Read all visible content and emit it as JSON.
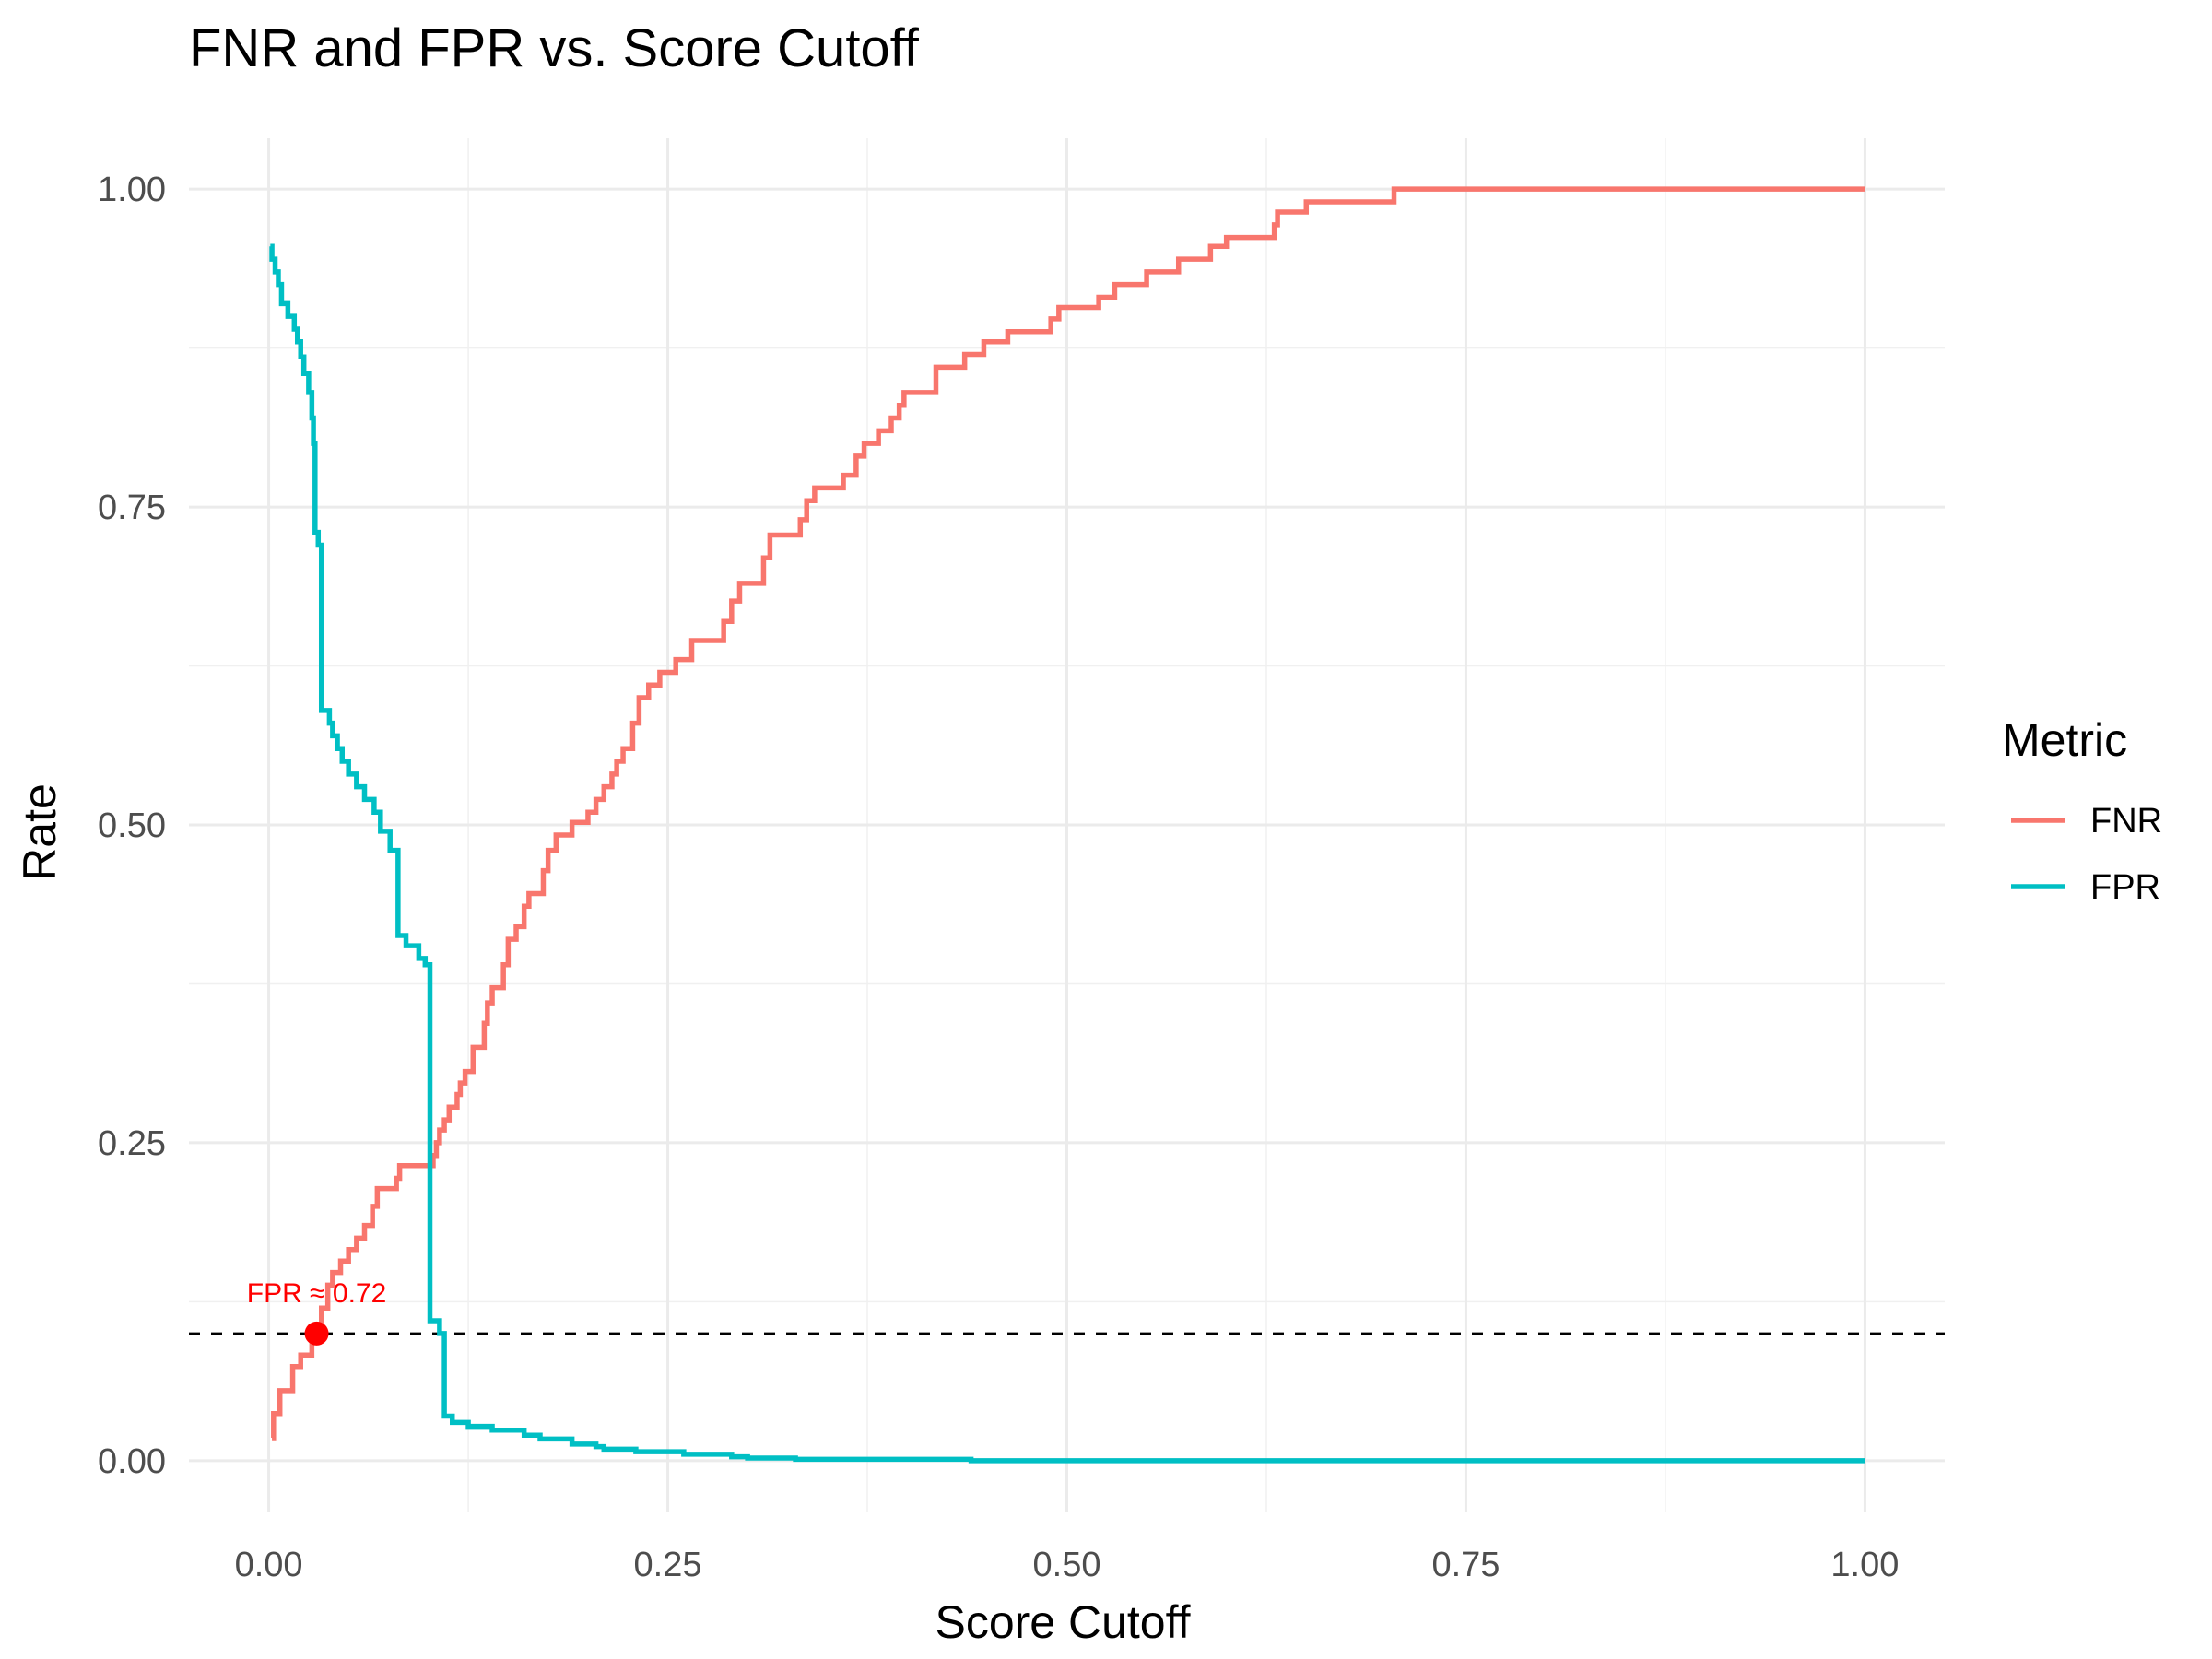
{
  "chart_data": {
    "type": "line",
    "title": "FNR and FPR vs. Score Cutoff",
    "xlabel": "Score Cutoff",
    "ylabel": "Rate",
    "xlim": [
      -0.05,
      1.05
    ],
    "ylim": [
      -0.04,
      1.04
    ],
    "x_ticks": [
      0,
      0.25,
      0.5,
      0.75,
      1
    ],
    "x_tick_labels": [
      "0.00",
      "0.25",
      "0.50",
      "0.75",
      "1.00"
    ],
    "y_ticks": [
      0,
      0.25,
      0.5,
      0.75,
      1
    ],
    "y_tick_labels": [
      "0.00",
      "0.25",
      "0.50",
      "0.75",
      "1.00"
    ],
    "grid": true,
    "legend": {
      "title": "Metric",
      "position": "right"
    },
    "reference_line": {
      "y": 0.1,
      "style": "dashed",
      "color": "#000000"
    },
    "annotation": {
      "text": "FPR ≈ 0.72",
      "x": 0.03,
      "y": 0.1,
      "color": "#ff0000"
    },
    "series": [
      {
        "name": "FNR",
        "color": "#f8766d",
        "step": true,
        "points": [
          [
            0.002,
            0.018
          ],
          [
            0.003,
            0.037
          ],
          [
            0.007,
            0.055
          ],
          [
            0.015,
            0.074
          ],
          [
            0.02,
            0.083
          ],
          [
            0.027,
            0.1
          ],
          [
            0.033,
            0.12
          ],
          [
            0.037,
            0.138
          ],
          [
            0.04,
            0.148
          ],
          [
            0.045,
            0.157
          ],
          [
            0.05,
            0.166
          ],
          [
            0.055,
            0.175
          ],
          [
            0.06,
            0.185
          ],
          [
            0.065,
            0.2
          ],
          [
            0.068,
            0.214
          ],
          [
            0.08,
            0.222
          ],
          [
            0.082,
            0.232
          ],
          [
            0.103,
            0.24
          ],
          [
            0.105,
            0.25
          ],
          [
            0.107,
            0.26
          ],
          [
            0.11,
            0.268
          ],
          [
            0.113,
            0.278
          ],
          [
            0.118,
            0.288
          ],
          [
            0.12,
            0.297
          ],
          [
            0.123,
            0.306
          ],
          [
            0.128,
            0.325
          ],
          [
            0.135,
            0.344
          ],
          [
            0.137,
            0.36
          ],
          [
            0.14,
            0.372
          ],
          [
            0.147,
            0.39
          ],
          [
            0.15,
            0.41
          ],
          [
            0.155,
            0.42
          ],
          [
            0.16,
            0.436
          ],
          [
            0.163,
            0.446
          ],
          [
            0.172,
            0.464
          ],
          [
            0.175,
            0.48
          ],
          [
            0.18,
            0.492
          ],
          [
            0.19,
            0.502
          ],
          [
            0.2,
            0.51
          ],
          [
            0.205,
            0.52
          ],
          [
            0.21,
            0.53
          ],
          [
            0.215,
            0.54
          ],
          [
            0.218,
            0.55
          ],
          [
            0.222,
            0.56
          ],
          [
            0.228,
            0.58
          ],
          [
            0.232,
            0.6
          ],
          [
            0.238,
            0.61
          ],
          [
            0.245,
            0.62
          ],
          [
            0.255,
            0.63
          ],
          [
            0.265,
            0.645
          ],
          [
            0.285,
            0.66
          ],
          [
            0.29,
            0.676
          ],
          [
            0.295,
            0.69
          ],
          [
            0.31,
            0.71
          ],
          [
            0.314,
            0.728
          ],
          [
            0.333,
            0.74
          ],
          [
            0.337,
            0.755
          ],
          [
            0.342,
            0.765
          ],
          [
            0.36,
            0.775
          ],
          [
            0.368,
            0.79
          ],
          [
            0.373,
            0.8
          ],
          [
            0.382,
            0.81
          ],
          [
            0.39,
            0.82
          ],
          [
            0.395,
            0.83
          ],
          [
            0.398,
            0.84
          ],
          [
            0.418,
            0.86
          ],
          [
            0.436,
            0.87
          ],
          [
            0.448,
            0.88
          ],
          [
            0.463,
            0.888
          ],
          [
            0.49,
            0.898
          ],
          [
            0.495,
            0.907
          ],
          [
            0.52,
            0.915
          ],
          [
            0.53,
            0.925
          ],
          [
            0.55,
            0.935
          ],
          [
            0.57,
            0.945
          ],
          [
            0.59,
            0.955
          ],
          [
            0.6,
            0.962
          ],
          [
            0.63,
            0.972
          ],
          [
            0.632,
            0.982
          ],
          [
            0.65,
            0.99
          ],
          [
            0.705,
            1.0
          ],
          [
            1.0,
            1.0
          ]
        ]
      },
      {
        "name": "FPR",
        "color": "#00bfc4",
        "step": true,
        "points": [
          [
            0.001,
            0.955
          ],
          [
            0.002,
            0.945
          ],
          [
            0.004,
            0.935
          ],
          [
            0.006,
            0.925
          ],
          [
            0.008,
            0.91
          ],
          [
            0.012,
            0.9
          ],
          [
            0.016,
            0.89
          ],
          [
            0.018,
            0.88
          ],
          [
            0.02,
            0.868
          ],
          [
            0.022,
            0.855
          ],
          [
            0.025,
            0.84
          ],
          [
            0.027,
            0.82
          ],
          [
            0.028,
            0.8
          ],
          [
            0.029,
            0.73
          ],
          [
            0.031,
            0.72
          ],
          [
            0.033,
            0.59
          ],
          [
            0.038,
            0.58
          ],
          [
            0.04,
            0.57
          ],
          [
            0.043,
            0.56
          ],
          [
            0.046,
            0.55
          ],
          [
            0.05,
            0.54
          ],
          [
            0.055,
            0.53
          ],
          [
            0.06,
            0.52
          ],
          [
            0.066,
            0.51
          ],
          [
            0.07,
            0.495
          ],
          [
            0.076,
            0.48
          ],
          [
            0.081,
            0.413
          ],
          [
            0.086,
            0.405
          ],
          [
            0.094,
            0.395
          ],
          [
            0.098,
            0.39
          ],
          [
            0.101,
            0.11
          ],
          [
            0.107,
            0.1
          ],
          [
            0.11,
            0.035
          ],
          [
            0.115,
            0.03
          ],
          [
            0.125,
            0.027
          ],
          [
            0.14,
            0.024
          ],
          [
            0.16,
            0.02
          ],
          [
            0.17,
            0.017
          ],
          [
            0.19,
            0.013
          ],
          [
            0.205,
            0.011
          ],
          [
            0.21,
            0.009
          ],
          [
            0.23,
            0.007
          ],
          [
            0.26,
            0.005
          ],
          [
            0.29,
            0.003
          ],
          [
            0.3,
            0.002
          ],
          [
            0.33,
            0.001
          ],
          [
            0.44,
            0.0
          ],
          [
            1.0,
            0.0
          ]
        ]
      }
    ]
  }
}
